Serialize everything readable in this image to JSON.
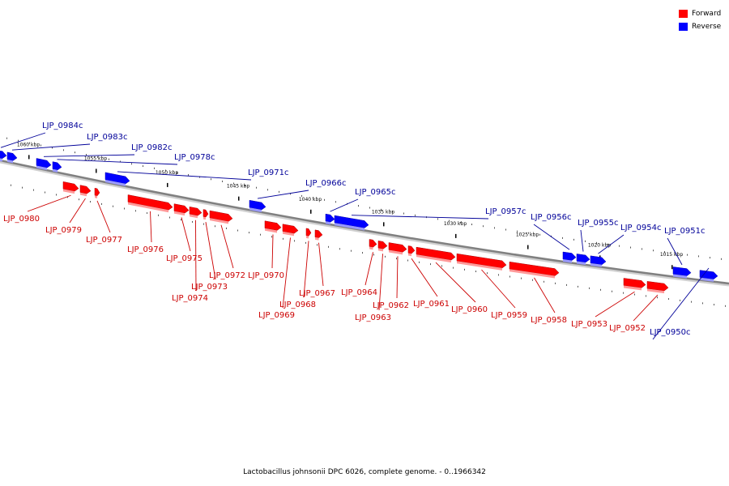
{
  "legend": {
    "forward_label": "Forward",
    "reverse_label": "Reverse",
    "forward_color": "#ff0000",
    "reverse_color": "#0000ff"
  },
  "caption": "Lactobacillus johnsonii DPC 6026, complete genome. - 0..1966342",
  "label_colors": {
    "forward": "#cc0000",
    "reverse": "#000099"
  },
  "ticks": [
    "1060 kbp",
    "1055 kbp",
    "1050 kbp",
    "1045 kbp",
    "1040 kbp",
    "1035 kbp",
    "1030 kbp",
    "1025 kbp",
    "1020 kbp",
    "1015 kbp"
  ],
  "genes": [
    {
      "name": "LJP_0984c",
      "strand": "reverse"
    },
    {
      "name": "LJP_0983c",
      "strand": "reverse"
    },
    {
      "name": "LJP_0982c",
      "strand": "reverse"
    },
    {
      "name": "LJP_0978c",
      "strand": "reverse"
    },
    {
      "name": "LJP_0980",
      "strand": "forward"
    },
    {
      "name": "LJP_0979",
      "strand": "forward"
    },
    {
      "name": "LJP_0977",
      "strand": "forward"
    },
    {
      "name": "LJP_0976",
      "strand": "forward"
    },
    {
      "name": "LJP_0975",
      "strand": "forward"
    },
    {
      "name": "LJP_0974",
      "strand": "forward"
    },
    {
      "name": "LJP_0973",
      "strand": "forward"
    },
    {
      "name": "LJP_0972",
      "strand": "forward"
    },
    {
      "name": "LJP_0971c",
      "strand": "reverse"
    },
    {
      "name": "LJP_0970",
      "strand": "forward"
    },
    {
      "name": "LJP_0969",
      "strand": "forward"
    },
    {
      "name": "LJP_0968",
      "strand": "forward"
    },
    {
      "name": "LJP_0967",
      "strand": "forward"
    },
    {
      "name": "LJP_0966c",
      "strand": "reverse"
    },
    {
      "name": "LJP_0965c",
      "strand": "reverse"
    },
    {
      "name": "LJP_0964",
      "strand": "forward"
    },
    {
      "name": "LJP_0963",
      "strand": "forward"
    },
    {
      "name": "LJP_0962",
      "strand": "forward"
    },
    {
      "name": "LJP_0961",
      "strand": "forward"
    },
    {
      "name": "LJP_0960",
      "strand": "forward"
    },
    {
      "name": "LJP_0959",
      "strand": "forward"
    },
    {
      "name": "LJP_0958",
      "strand": "forward"
    },
    {
      "name": "LJP_0957c",
      "strand": "reverse"
    },
    {
      "name": "LJP_0956c",
      "strand": "reverse"
    },
    {
      "name": "LJP_0955c",
      "strand": "reverse"
    },
    {
      "name": "LJP_0954c",
      "strand": "reverse"
    },
    {
      "name": "LJP_0953",
      "strand": "forward"
    },
    {
      "name": "LJP_0952",
      "strand": "forward"
    },
    {
      "name": "LJP_0951c",
      "strand": "reverse"
    },
    {
      "name": "LJP_0950c",
      "strand": "reverse"
    }
  ]
}
